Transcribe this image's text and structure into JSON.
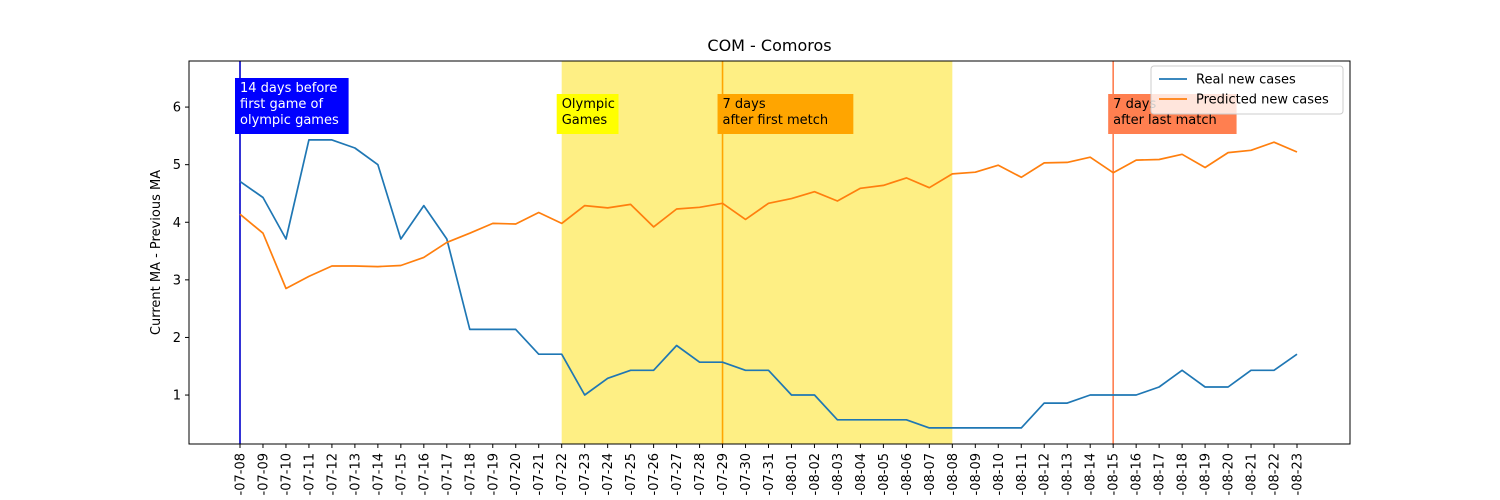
{
  "chart_data": {
    "type": "line",
    "title": "COM - Comoros",
    "xlabel": "",
    "ylabel": "Current MA - Previous MA",
    "ylim": [
      0.15,
      6.8
    ],
    "yticks": [
      1,
      2,
      3,
      4,
      5,
      6
    ],
    "grid": false,
    "legend_position": "top-right",
    "x_tick_labels": [
      "-07-08",
      "-07-09",
      "-07-10",
      "-07-11",
      "-07-12",
      "-07-13",
      "-07-14",
      "-07-15",
      "-07-16",
      "-07-17",
      "-07-18",
      "-07-19",
      "-07-20",
      "-07-21",
      "-07-22",
      "-07-23",
      "-07-24",
      "-07-25",
      "-07-26",
      "-07-27",
      "-07-28",
      "-07-29",
      "-07-30",
      "-07-31",
      "-08-01",
      "-08-02",
      "-08-03",
      "-08-04",
      "-08-05",
      "-08-06",
      "-08-07",
      "-08-08",
      "-08-09",
      "-08-10",
      "-08-11",
      "-08-12",
      "-08-13",
      "-08-14",
      "-08-15",
      "-08-16",
      "-08-17",
      "-08-18",
      "-08-19",
      "-08-20",
      "-08-21",
      "-08-22",
      "-08-23"
    ],
    "series": [
      {
        "name": "Real new cases",
        "color": "#1f77b4",
        "values": [
          4.71,
          4.43,
          3.71,
          5.43,
          5.43,
          5.29,
          5.0,
          3.71,
          4.29,
          3.71,
          2.14,
          2.14,
          2.14,
          1.71,
          1.71,
          1.0,
          1.29,
          1.43,
          1.43,
          1.86,
          1.57,
          1.57,
          1.43,
          1.43,
          1.0,
          1.0,
          0.57,
          0.57,
          0.57,
          0.57,
          0.43,
          0.43,
          0.43,
          0.43,
          0.43,
          0.86,
          0.86,
          1.0,
          1.0,
          1.0,
          1.14,
          1.43,
          1.14,
          1.14,
          1.43,
          1.43,
          1.71
        ]
      },
      {
        "name": "Predicted new cases",
        "color": "#ff7f0e",
        "values": [
          4.14,
          3.81,
          2.85,
          3.06,
          3.24,
          3.24,
          3.23,
          3.25,
          3.39,
          3.65,
          3.81,
          3.98,
          3.97,
          4.17,
          3.98,
          4.29,
          4.25,
          4.31,
          3.92,
          4.23,
          4.26,
          4.33,
          4.05,
          4.33,
          4.41,
          4.53,
          4.37,
          4.59,
          4.64,
          4.77,
          4.6,
          4.84,
          4.87,
          4.99,
          4.78,
          5.03,
          5.04,
          5.13,
          4.86,
          5.08,
          5.09,
          5.18,
          4.95,
          5.21,
          5.25,
          5.39,
          5.22
        ]
      }
    ],
    "shaded_region": {
      "from": "-07-22",
      "to": "-08-08",
      "color": "#fde84a"
    },
    "vertical_lines": [
      {
        "at": "-07-08",
        "color": "#0000cc"
      },
      {
        "at": "-07-29",
        "color": "#ffa500"
      },
      {
        "at": "-08-15",
        "color": "#ff7f50"
      }
    ],
    "annotations": [
      {
        "id": "ann-before",
        "at": "-07-08",
        "lines": [
          "14 days before",
          "first game of",
          "olympic games"
        ],
        "bg": "#0000ff",
        "fg": "#ffffff"
      },
      {
        "id": "ann-olympic",
        "at": "-07-22",
        "lines": [
          "Olympic",
          "Games"
        ],
        "bg": "#ffff00",
        "fg": "#000000"
      },
      {
        "id": "ann-first",
        "at": "-07-29",
        "lines": [
          "7 days",
          "after first metch"
        ],
        "bg": "#ffa500",
        "fg": "#000000"
      },
      {
        "id": "ann-last",
        "at": "-08-15",
        "lines": [
          "7 days",
          "after last match"
        ],
        "bg": "#ff7f50",
        "fg": "#000000"
      }
    ]
  }
}
